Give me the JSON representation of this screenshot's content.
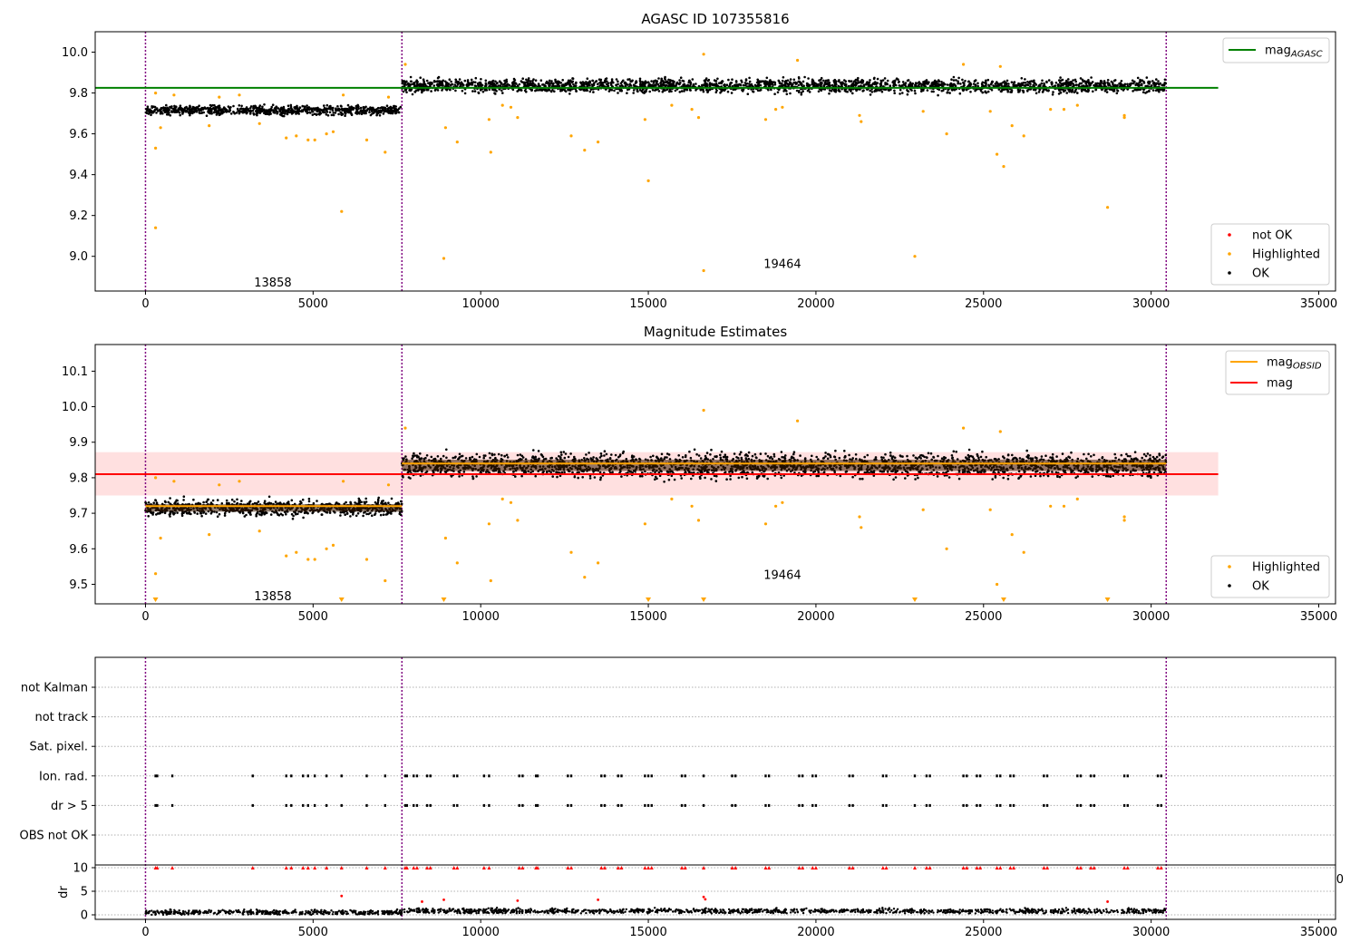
{
  "chart_data": [
    {
      "type": "scatter",
      "title": "AGASC ID 107355816",
      "xlim": [
        -1500,
        35500
      ],
      "ylim": [
        8.83,
        10.1
      ],
      "xticks": [
        0,
        5000,
        10000,
        15000,
        20000,
        25000,
        30000,
        35000
      ],
      "xtick_labels": [
        "0",
        "5000",
        "10000",
        "15000",
        "20000",
        "25000",
        "30000",
        "35000"
      ],
      "yticks": [
        9.0,
        9.2,
        9.4,
        9.6,
        9.8,
        10.0
      ],
      "ytick_labels": [
        "9.0",
        "9.2",
        "9.4",
        "9.6",
        "9.8",
        "10.0"
      ],
      "obsid_boundaries": [
        0,
        7650,
        30450
      ],
      "obsid_labels": [
        {
          "text": "13858",
          "x": 3800,
          "y": 8.87
        },
        {
          "text": "19464",
          "x": 19000,
          "y": 8.96
        }
      ],
      "lines": [
        {
          "name": "mag_AGASC",
          "label_main": "mag",
          "label_sub": "AGASC",
          "color": "#008000",
          "x": [
            -1500,
            32000
          ],
          "y": [
            9.825,
            9.825
          ]
        }
      ],
      "ok_bands": [
        {
          "x_range": [
            0,
            7650
          ],
          "center": 9.715,
          "spread": 0.03
        },
        {
          "x_range": [
            7650,
            30450
          ],
          "center": 9.835,
          "spread": 0.045
        }
      ],
      "series": [
        {
          "name": "not OK",
          "color": "#ff0000",
          "points": []
        },
        {
          "name": "Highlighted",
          "color": "#ffa500",
          "points": [
            [
              300,
              9.8
            ],
            [
              300,
              9.53
            ],
            [
              300,
              9.14
            ],
            [
              450,
              9.63
            ],
            [
              850,
              9.79
            ],
            [
              1900,
              9.64
            ],
            [
              2200,
              9.78
            ],
            [
              2800,
              9.79
            ],
            [
              3400,
              9.65
            ],
            [
              4200,
              9.58
            ],
            [
              4500,
              9.59
            ],
            [
              4850,
              9.57
            ],
            [
              5050,
              9.57
            ],
            [
              5400,
              9.6
            ],
            [
              5600,
              9.61
            ],
            [
              5850,
              9.22
            ],
            [
              5900,
              9.79
            ],
            [
              6600,
              9.57
            ],
            [
              7150,
              9.51
            ],
            [
              7250,
              9.78
            ],
            [
              7750,
              9.94
            ],
            [
              8900,
              8.99
            ],
            [
              8950,
              9.63
            ],
            [
              9300,
              9.56
            ],
            [
              10250,
              9.67
            ],
            [
              10300,
              9.51
            ],
            [
              10650,
              9.74
            ],
            [
              10900,
              9.73
            ],
            [
              11100,
              9.68
            ],
            [
              12700,
              9.59
            ],
            [
              13100,
              9.52
            ],
            [
              13500,
              9.56
            ],
            [
              14900,
              9.67
            ],
            [
              15000,
              9.37
            ],
            [
              15700,
              9.74
            ],
            [
              16300,
              9.72
            ],
            [
              16500,
              9.68
            ],
            [
              16650,
              9.99
            ],
            [
              16650,
              8.93
            ],
            [
              18500,
              9.67
            ],
            [
              18800,
              9.72
            ],
            [
              19000,
              9.73
            ],
            [
              19450,
              9.96
            ],
            [
              21300,
              9.69
            ],
            [
              21350,
              9.66
            ],
            [
              22950,
              9.0
            ],
            [
              23200,
              9.71
            ],
            [
              23900,
              9.6
            ],
            [
              24400,
              9.94
            ],
            [
              25200,
              9.71
            ],
            [
              25400,
              9.5
            ],
            [
              25500,
              9.93
            ],
            [
              25600,
              9.44
            ],
            [
              25850,
              9.64
            ],
            [
              26200,
              9.59
            ],
            [
              27000,
              9.72
            ],
            [
              27400,
              9.72
            ],
            [
              27800,
              9.74
            ],
            [
              28700,
              9.24
            ],
            [
              29200,
              9.69
            ],
            [
              29200,
              9.68
            ]
          ]
        },
        {
          "name": "OK",
          "color": "#000000",
          "points": []
        }
      ],
      "legend_upper": "top-right",
      "legend_lower": "bottom-right"
    },
    {
      "type": "scatter",
      "title": "Magnitude Estimates",
      "xlim": [
        -1500,
        35500
      ],
      "ylim": [
        9.445,
        10.175
      ],
      "xticks": [
        0,
        5000,
        10000,
        15000,
        20000,
        25000,
        30000,
        35000
      ],
      "xtick_labels": [
        "0",
        "5000",
        "10000",
        "15000",
        "20000",
        "25000",
        "30000",
        "35000"
      ],
      "yticks": [
        9.5,
        9.6,
        9.7,
        9.8,
        9.9,
        10.0,
        10.1
      ],
      "ytick_labels": [
        "9.5",
        "9.6",
        "9.7",
        "9.8",
        "9.9",
        "10.0",
        "10.1"
      ],
      "obsid_boundaries": [
        0,
        7650,
        30450
      ],
      "obsid_labels": [
        {
          "text": "13858",
          "x": 3800,
          "y": 9.465
        },
        {
          "text": "19464",
          "x": 19000,
          "y": 9.525
        }
      ],
      "band": {
        "x_range": [
          -1500,
          32000
        ],
        "y_range": [
          9.75,
          9.872
        ],
        "color": "#ffcccc"
      },
      "lines": [
        {
          "name": "mag_OBSID",
          "label_main": "mag",
          "label_sub": "OBSID",
          "color": "#ffa500",
          "segments": [
            [
              0,
              7650,
              9.72
            ],
            [
              7650,
              30450,
              9.84
            ]
          ]
        },
        {
          "name": "mag",
          "label_main": "mag",
          "label_sub": "",
          "color": "#ff0000",
          "x": [
            -1500,
            32000
          ],
          "y": [
            9.81,
            9.81
          ]
        }
      ],
      "ok_bands": [
        {
          "x_range": [
            0,
            7650
          ],
          "center": 9.715,
          "spread": 0.03
        },
        {
          "x_range": [
            7650,
            30450
          ],
          "center": 9.835,
          "spread": 0.045
        }
      ],
      "series": [
        {
          "name": "Highlighted",
          "color": "#ffa500",
          "points": [
            [
              300,
              9.8
            ],
            [
              300,
              9.53
            ],
            [
              450,
              9.63
            ],
            [
              850,
              9.79
            ],
            [
              1900,
              9.64
            ],
            [
              2200,
              9.78
            ],
            [
              2800,
              9.79
            ],
            [
              3400,
              9.65
            ],
            [
              4200,
              9.58
            ],
            [
              4500,
              9.59
            ],
            [
              4850,
              9.57
            ],
            [
              5050,
              9.57
            ],
            [
              5400,
              9.6
            ],
            [
              5600,
              9.61
            ],
            [
              5900,
              9.79
            ],
            [
              6600,
              9.57
            ],
            [
              7150,
              9.51
            ],
            [
              7250,
              9.78
            ],
            [
              7750,
              9.94
            ],
            [
              8950,
              9.63
            ],
            [
              9300,
              9.56
            ],
            [
              10250,
              9.67
            ],
            [
              10300,
              9.51
            ],
            [
              10650,
              9.74
            ],
            [
              10900,
              9.73
            ],
            [
              11100,
              9.68
            ],
            [
              12700,
              9.59
            ],
            [
              13100,
              9.52
            ],
            [
              13500,
              9.56
            ],
            [
              14900,
              9.67
            ],
            [
              15700,
              9.74
            ],
            [
              16300,
              9.72
            ],
            [
              16500,
              9.68
            ],
            [
              16650,
              9.99
            ],
            [
              18500,
              9.67
            ],
            [
              18800,
              9.72
            ],
            [
              19000,
              9.73
            ],
            [
              19450,
              9.96
            ],
            [
              21300,
              9.69
            ],
            [
              21350,
              9.66
            ],
            [
              23200,
              9.71
            ],
            [
              23900,
              9.6
            ],
            [
              24400,
              9.94
            ],
            [
              25200,
              9.71
            ],
            [
              25400,
              9.5
            ],
            [
              25500,
              9.93
            ],
            [
              25850,
              9.64
            ],
            [
              26200,
              9.59
            ],
            [
              27000,
              9.72
            ],
            [
              27400,
              9.72
            ],
            [
              27800,
              9.74
            ],
            [
              29200,
              9.69
            ],
            [
              29200,
              9.68
            ]
          ]
        },
        {
          "name": "OK",
          "color": "#000000",
          "points": []
        }
      ],
      "offscale_markers_x": [
        300,
        5850,
        8900,
        15000,
        16650,
        22950,
        25600,
        28700
      ],
      "legend_upper": "top-right",
      "legend_lower": "bottom-right"
    },
    {
      "type": "scatter",
      "title": "",
      "xlim": [
        -1500,
        35500
      ],
      "flag_rows": [
        "not Kalman",
        "not track",
        "Sat. pixel.",
        "Ion. rad.",
        "dr > 5",
        "OBS not OK"
      ],
      "flag_positions_x": [
        300,
        350,
        800,
        3200,
        4200,
        4350,
        4700,
        4850,
        5050,
        5400,
        5850,
        6600,
        7150,
        7750,
        7800,
        8000,
        8100,
        8400,
        8500,
        9200,
        9300,
        10100,
        10250,
        11150,
        11250,
        11650,
        11700,
        12600,
        12700,
        13600,
        13700,
        14100,
        14200,
        14900,
        15000,
        15100,
        16000,
        16100,
        16650,
        17500,
        17600,
        18500,
        18600,
        19500,
        19600,
        19900,
        20000,
        21000,
        21100,
        22000,
        22100,
        22950,
        23300,
        23400,
        24400,
        24500,
        24800,
        24900,
        25400,
        25500,
        25800,
        25900,
        26800,
        26900,
        27800,
        27900,
        28200,
        28300,
        29200,
        29300,
        30200,
        30300
      ],
      "flag_marks": {
        "Ion. rad.": "all",
        "dr > 5": "all",
        "not Kalman": "none",
        "not track": "none",
        "Sat. pixel.": "none",
        "OBS not OK": "none"
      },
      "dr_yticks": [
        0,
        5,
        10
      ],
      "dr_ytick_labels": [
        "0",
        "5",
        "10"
      ],
      "dr_ylim": [
        -0.5,
        10.5
      ],
      "dr_ylabel": "dr",
      "dr_baseline_band": {
        "x_range": [
          0,
          30450
        ],
        "center": 0.5,
        "spread": 0.5,
        "color": "#000000"
      },
      "dr_red_points": [
        [
          5850,
          4.0
        ],
        [
          8900,
          3.2
        ],
        [
          8250,
          2.8
        ],
        [
          11100,
          3.0
        ],
        [
          13500,
          3.2
        ],
        [
          16650,
          3.8
        ],
        [
          16700,
          3.3
        ],
        [
          28700,
          2.8
        ]
      ],
      "dr_red_top_value": 10,
      "xticks": [
        0,
        5000,
        10000,
        15000,
        20000,
        25000,
        30000,
        35000
      ],
      "xtick_labels": [
        "0",
        "5000",
        "10000",
        "15000",
        "20000",
        "25000",
        "30000",
        "35000"
      ],
      "obsid_boundaries": [
        0,
        7650,
        30450
      ],
      "clipped_label": "0"
    }
  ],
  "colors": {
    "boundary": "#800080",
    "grid": "#b0b0b0",
    "legend_border": "#cccccc"
  }
}
